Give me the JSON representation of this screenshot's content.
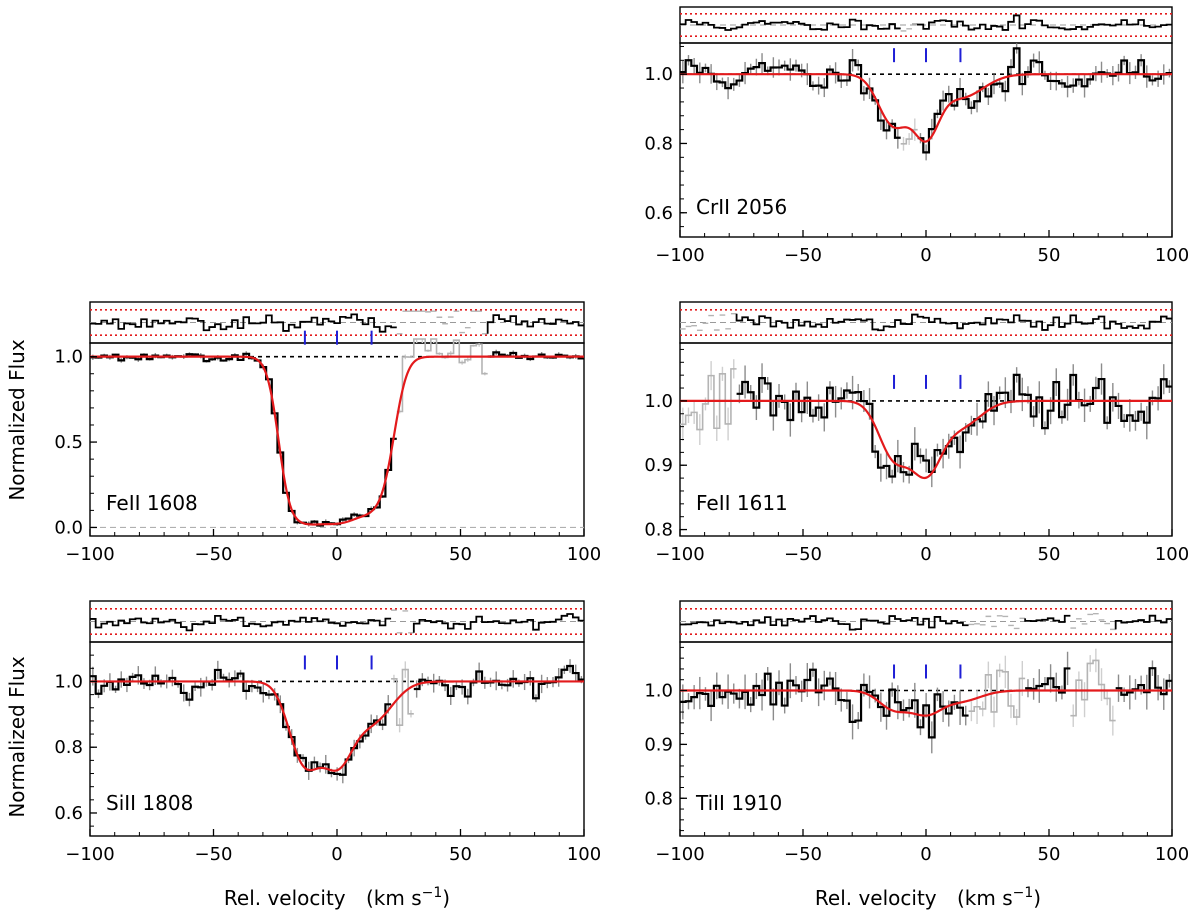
{
  "figure": {
    "ylabel": "Normalized Flux",
    "xlabel": "Rel. velocity",
    "xunit_prefix": "(km s",
    "xunit_exp": "−1",
    "xunit_suffix": ")"
  },
  "colors": {
    "data": "#000000",
    "error": "#8c8c8c",
    "masked": "#b4b4b4",
    "model": "#e31a1c",
    "continuum": "#000000",
    "components": "#1f1fd6",
    "residual_band": "#e31a1c"
  },
  "chart_data": [
    {
      "type": "line",
      "ion": "CrII 2056",
      "panel": "top-right",
      "xlim": [
        -100,
        100
      ],
      "ylim": [
        0.53,
        1.09
      ],
      "yticks": [
        "0.6",
        "0.8",
        "1.0"
      ],
      "yticks_v": [
        0.6,
        0.8,
        1.0
      ],
      "xticks": [
        "−100",
        "−50",
        "0",
        "50",
        "100"
      ],
      "xticks_v": [
        -100,
        -50,
        0,
        50,
        100
      ],
      "components": [
        -13,
        0,
        14
      ],
      "noise": 0.025,
      "seed": 11,
      "model": {
        "depths": [
          0.16,
          0.18,
          0.07
        ],
        "widths": [
          6,
          5,
          9
        ]
      },
      "masked": [
        [
          -10,
          -3
        ]
      ]
    },
    {
      "type": "line",
      "ion": "FeII 1608",
      "panel": "middle-left",
      "xlim": [
        -100,
        100
      ],
      "ylim": [
        -0.05,
        1.08
      ],
      "yticks": [
        "0.0",
        "0.5",
        "1.0"
      ],
      "yticks_v": [
        0.0,
        0.5,
        1.0
      ],
      "xticks": [
        "−100",
        "−50",
        "0",
        "50",
        "100"
      ],
      "xticks_v": [
        -100,
        -50,
        0,
        50,
        100
      ],
      "components": [
        -13,
        0,
        14
      ],
      "noise": 0.012,
      "seed": 23,
      "model": {
        "depths": [
          3.2,
          3.4,
          1.9
        ],
        "widths": [
          6,
          7,
          6
        ]
      },
      "masked": [
        [
          25,
          60
        ]
      ]
    },
    {
      "type": "line",
      "ion": "FeII 1611",
      "panel": "middle-right",
      "xlim": [
        -100,
        100
      ],
      "ylim": [
        0.79,
        1.09
      ],
      "yticks": [
        "0.8",
        "0.9",
        "1.0"
      ],
      "yticks_v": [
        0.8,
        0.9,
        1.0
      ],
      "xticks": [
        "−100",
        "−50",
        "0",
        "50",
        "100"
      ],
      "xticks_v": [
        -100,
        -50,
        0,
        50,
        100
      ],
      "components": [
        -13,
        0,
        14
      ],
      "noise": 0.02,
      "seed": 37,
      "model": {
        "depths": [
          0.09,
          0.11,
          0.04
        ],
        "widths": [
          6,
          6,
          8
        ]
      },
      "masked": [
        [
          -100,
          -78
        ]
      ]
    },
    {
      "type": "line",
      "ion": "SiII 1808",
      "panel": "bottom-left",
      "xlim": [
        -100,
        100
      ],
      "ylim": [
        0.53,
        1.12
      ],
      "yticks": [
        "0.6",
        "0.8",
        "1.0"
      ],
      "yticks_v": [
        0.6,
        0.8,
        1.0
      ],
      "xticks": [
        "−100",
        "−50",
        "0",
        "50",
        "100"
      ],
      "xticks_v": [
        -100,
        -50,
        0,
        50,
        100
      ],
      "components": [
        -13,
        0,
        14
      ],
      "noise": 0.022,
      "seed": 53,
      "model": {
        "depths": [
          0.28,
          0.26,
          0.13
        ],
        "widths": [
          6,
          6,
          8
        ]
      },
      "masked": [
        [
          22,
          32
        ]
      ]
    },
    {
      "type": "line",
      "ion": "TiII 1910",
      "panel": "bottom-right",
      "xlim": [
        -100,
        100
      ],
      "ylim": [
        0.73,
        1.09
      ],
      "yticks": [
        "0.8",
        "0.9",
        "1.0"
      ],
      "yticks_v": [
        0.8,
        0.9,
        1.0
      ],
      "xticks": [
        "−100",
        "−50",
        "0",
        "50",
        "100"
      ],
      "xticks_v": [
        -100,
        -50,
        0,
        50,
        100
      ],
      "components": [
        -13,
        0,
        14
      ],
      "noise": 0.025,
      "seed": 71,
      "model": {
        "depths": [
          0.035,
          0.04,
          0.02
        ],
        "widths": [
          6,
          6,
          8
        ]
      },
      "masked": [
        [
          17,
          40
        ],
        [
          58,
          78
        ]
      ]
    }
  ]
}
